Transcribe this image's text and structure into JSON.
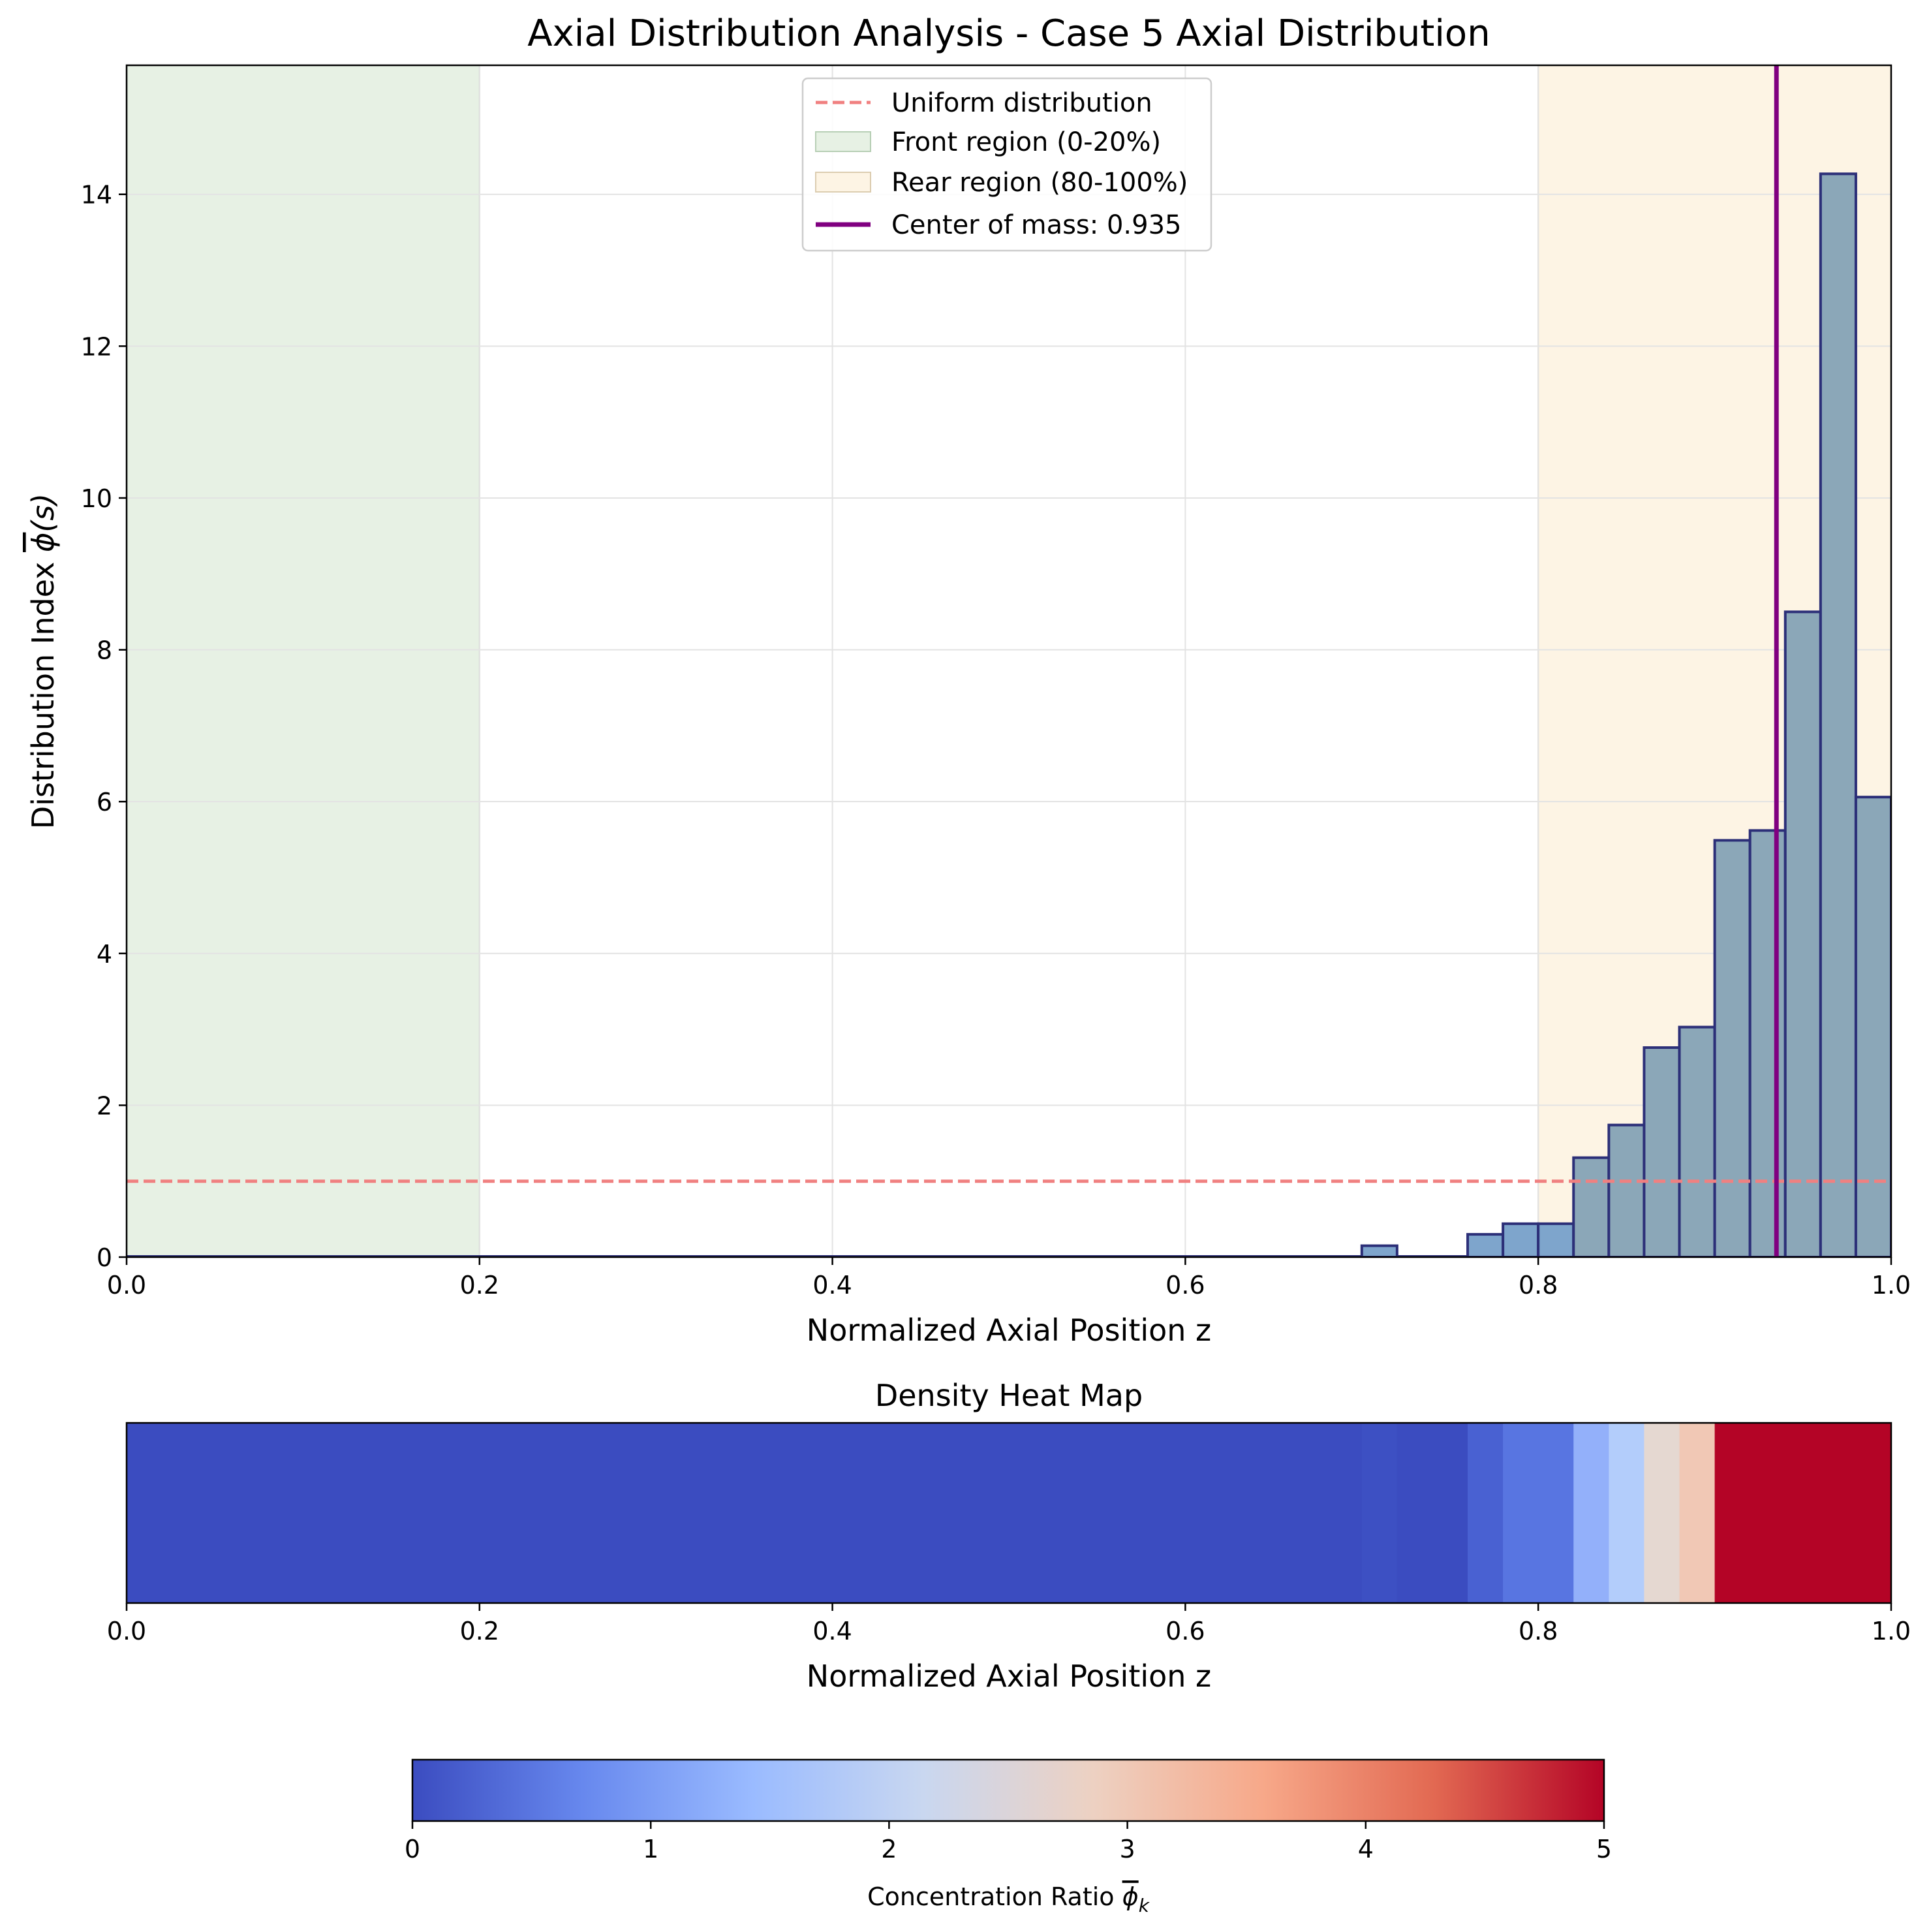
{
  "chart_data": [
    {
      "type": "bar",
      "title": "Axial Distribution Analysis - Case 5 Axial Distribution",
      "xlabel": "Normalized Axial Position z",
      "ylabel_prefix": "Distribution Index ",
      "ylabel_symbol": "ϕ",
      "ylabel_suffix": "(s)",
      "xlim": [
        0,
        1
      ],
      "ylim": [
        0,
        15.7
      ],
      "grid": true,
      "x_ticks": [
        0.0,
        0.2,
        0.4,
        0.6,
        0.8,
        1.0
      ],
      "x_tick_labels": [
        "0.0",
        "0.2",
        "0.4",
        "0.6",
        "0.8",
        "1.0"
      ],
      "y_ticks": [
        0,
        2,
        4,
        6,
        8,
        10,
        12,
        14
      ],
      "y_tick_labels": [
        "0",
        "2",
        "4",
        "6",
        "8",
        "10",
        "12",
        "14"
      ],
      "bin_width": 0.02,
      "bin_starts": [
        0.7,
        0.76,
        0.78,
        0.8,
        0.82,
        0.84,
        0.86,
        0.88,
        0.9,
        0.92,
        0.94,
        0.96,
        0.98
      ],
      "values": [
        0.15,
        0.3,
        0.44,
        0.44,
        1.31,
        1.74,
        2.76,
        3.03,
        5.49,
        5.62,
        8.5,
        14.27,
        6.06
      ],
      "uniform_level": 1.0,
      "front_region": [
        0.0,
        0.2
      ],
      "rear_region": [
        0.8,
        1.0
      ],
      "center_of_mass": 0.935,
      "legend_position": "upper center",
      "legend": [
        "Uniform distribution",
        "Front region (0-20%)",
        "Rear region (80-100%)",
        "Center of mass: 0.935"
      ],
      "colors": {
        "bar_fill": "#8ba7b8",
        "bar_fill_low": "#7ea5cc",
        "bar_edge": "#2c2f78",
        "uniform_line": "#f08080",
        "front_fill": "#e7f1e4",
        "front_edge": "#b7cfb5",
        "rear_fill": "#fdf4e4",
        "rear_edge": "#dccdb0",
        "center_line": "#800080",
        "grid": "#e3e3e3"
      }
    },
    {
      "type": "heatmap",
      "title": "Density Heat Map",
      "xlabel": "Normalized Axial Position z",
      "xlim": [
        0,
        1
      ],
      "x_ticks": [
        0.0,
        0.2,
        0.4,
        0.6,
        0.8,
        1.0
      ],
      "x_tick_labels": [
        "0.0",
        "0.2",
        "0.4",
        "0.6",
        "0.8",
        "1.0"
      ],
      "segments": [
        {
          "start": 0.0,
          "end": 0.7,
          "color": "#3b4cc0"
        },
        {
          "start": 0.7,
          "end": 0.72,
          "color": "#3d50c3"
        },
        {
          "start": 0.72,
          "end": 0.76,
          "color": "#3b4cc0"
        },
        {
          "start": 0.76,
          "end": 0.78,
          "color": "#4961d2"
        },
        {
          "start": 0.78,
          "end": 0.82,
          "color": "#5875e1"
        },
        {
          "start": 0.82,
          "end": 0.84,
          "color": "#93b0fa"
        },
        {
          "start": 0.84,
          "end": 0.86,
          "color": "#b3cdfb"
        },
        {
          "start": 0.86,
          "end": 0.88,
          "color": "#e5d8d1"
        },
        {
          "start": 0.88,
          "end": 0.9,
          "color": "#f1c8b5"
        },
        {
          "start": 0.9,
          "end": 1.0,
          "color": "#b40426"
        }
      ]
    },
    {
      "type": "colorbar",
      "label_prefix": "Concentration Ratio  ",
      "label_symbol": "ϕ",
      "label_sub": "k",
      "range": [
        0,
        5
      ],
      "ticks": [
        0,
        1,
        2,
        3,
        4,
        5
      ],
      "tick_labels": [
        "0",
        "1",
        "2",
        "3",
        "4",
        "5"
      ],
      "colormap": "coolwarm",
      "stops": [
        "#3b4cc0",
        "#6788ee",
        "#9abbff",
        "#c9d7f0",
        "#edd1c2",
        "#f7a889",
        "#e26952",
        "#b40426"
      ]
    }
  ]
}
